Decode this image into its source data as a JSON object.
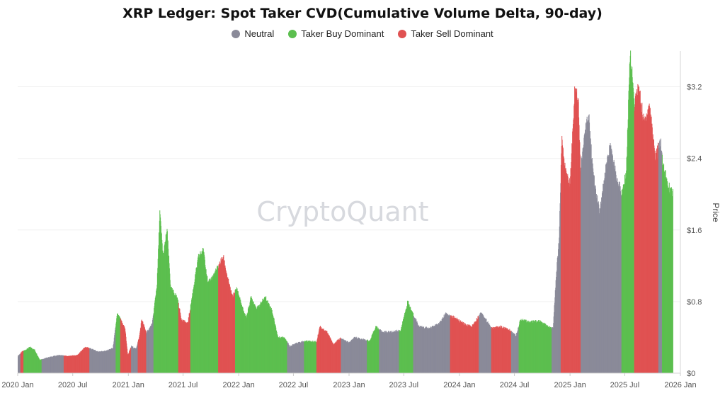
{
  "chart_data": {
    "type": "bar",
    "title": "XRP Ledger: Spot Taker CVD(Cumulative Volume Delta, 90-day)",
    "legend": [
      {
        "name": "Neutral",
        "color": "#8a8a99"
      },
      {
        "name": "Taker Buy Dominant",
        "color": "#5cbf4f"
      },
      {
        "name": "Taker Sell Dominant",
        "color": "#e05252"
      }
    ],
    "watermark": "CryptoQuant",
    "ylabel": "Price",
    "ylim": [
      0,
      3.6
    ],
    "yticks": [
      {
        "value": 0,
        "label": "$0"
      },
      {
        "value": 0.8,
        "label": "$0.8"
      },
      {
        "value": 1.6,
        "label": "$1.6"
      },
      {
        "value": 2.4,
        "label": "$2.4"
      },
      {
        "value": 3.2,
        "label": "$3.2"
      }
    ],
    "xrange": [
      "2020-01-01",
      "2026-01-01"
    ],
    "xticks": [
      {
        "date": "2020-01-01",
        "label": "2020 Jan"
      },
      {
        "date": "2020-07-01",
        "label": "2020 Jul"
      },
      {
        "date": "2021-01-01",
        "label": "2021 Jan"
      },
      {
        "date": "2021-07-01",
        "label": "2021 Jul"
      },
      {
        "date": "2022-01-01",
        "label": "2022 Jan"
      },
      {
        "date": "2022-07-01",
        "label": "2022 Jul"
      },
      {
        "date": "2023-01-01",
        "label": "2023 Jan"
      },
      {
        "date": "2023-07-01",
        "label": "2023 Jul"
      },
      {
        "date": "2024-01-01",
        "label": "2024 Jan"
      },
      {
        "date": "2024-07-01",
        "label": "2024 Jul"
      },
      {
        "date": "2025-01-01",
        "label": "2025 Jan"
      },
      {
        "date": "2025-07-01",
        "label": "2025 Jul"
      },
      {
        "date": "2026-01-01",
        "label": "2026 Jan"
      }
    ],
    "price_series": [
      [
        "2019-12-31",
        0.19
      ],
      [
        "2020-01-15",
        0.24
      ],
      [
        "2020-02-10",
        0.29
      ],
      [
        "2020-02-25",
        0.26
      ],
      [
        "2020-03-13",
        0.15
      ],
      [
        "2020-04-15",
        0.18
      ],
      [
        "2020-05-15",
        0.2
      ],
      [
        "2020-06-15",
        0.19
      ],
      [
        "2020-07-15",
        0.2
      ],
      [
        "2020-08-10",
        0.29
      ],
      [
        "2020-08-25",
        0.28
      ],
      [
        "2020-09-20",
        0.24
      ],
      [
        "2020-10-20",
        0.25
      ],
      [
        "2020-11-10",
        0.28
      ],
      [
        "2020-11-24",
        0.66
      ],
      [
        "2020-12-05",
        0.6
      ],
      [
        "2020-12-20",
        0.5
      ],
      [
        "2020-12-29",
        0.2
      ],
      [
        "2021-01-10",
        0.3
      ],
      [
        "2021-01-25",
        0.27
      ],
      [
        "2021-02-05",
        0.4
      ],
      [
        "2021-02-13",
        0.6
      ],
      [
        "2021-03-01",
        0.45
      ],
      [
        "2021-03-20",
        0.55
      ],
      [
        "2021-04-05",
        1.0
      ],
      [
        "2021-04-14",
        1.8
      ],
      [
        "2021-04-25",
        1.3
      ],
      [
        "2021-05-08",
        1.6
      ],
      [
        "2021-05-20",
        0.95
      ],
      [
        "2021-06-10",
        0.85
      ],
      [
        "2021-06-25",
        0.6
      ],
      [
        "2021-07-15",
        0.55
      ],
      [
        "2021-07-25",
        0.75
      ],
      [
        "2021-08-10",
        1.1
      ],
      [
        "2021-08-20",
        1.3
      ],
      [
        "2021-09-06",
        1.38
      ],
      [
        "2021-09-20",
        1.0
      ],
      [
        "2021-10-10",
        1.1
      ],
      [
        "2021-11-10",
        1.3
      ],
      [
        "2021-11-25",
        1.05
      ],
      [
        "2021-12-10",
        0.85
      ],
      [
        "2021-12-25",
        0.95
      ],
      [
        "2022-01-10",
        0.75
      ],
      [
        "2022-01-25",
        0.62
      ],
      [
        "2022-02-10",
        0.85
      ],
      [
        "2022-03-01",
        0.72
      ],
      [
        "2022-03-29",
        0.85
      ],
      [
        "2022-04-20",
        0.7
      ],
      [
        "2022-05-10",
        0.4
      ],
      [
        "2022-06-01",
        0.4
      ],
      [
        "2022-06-18",
        0.3
      ],
      [
        "2022-07-15",
        0.34
      ],
      [
        "2022-08-15",
        0.36
      ],
      [
        "2022-09-15",
        0.35
      ],
      [
        "2022-09-25",
        0.52
      ],
      [
        "2022-10-20",
        0.46
      ],
      [
        "2022-11-09",
        0.32
      ],
      [
        "2022-12-01",
        0.39
      ],
      [
        "2022-12-31",
        0.34
      ],
      [
        "2023-01-20",
        0.4
      ],
      [
        "2023-02-10",
        0.38
      ],
      [
        "2023-03-10",
        0.36
      ],
      [
        "2023-03-29",
        0.52
      ],
      [
        "2023-04-20",
        0.46
      ],
      [
        "2023-05-20",
        0.46
      ],
      [
        "2023-06-20",
        0.48
      ],
      [
        "2023-07-13",
        0.8
      ],
      [
        "2023-07-25",
        0.7
      ],
      [
        "2023-08-20",
        0.52
      ],
      [
        "2023-09-20",
        0.5
      ],
      [
        "2023-10-25",
        0.55
      ],
      [
        "2023-11-15",
        0.66
      ],
      [
        "2023-12-15",
        0.62
      ],
      [
        "2024-01-15",
        0.55
      ],
      [
        "2024-02-10",
        0.52
      ],
      [
        "2024-03-12",
        0.68
      ],
      [
        "2024-04-15",
        0.5
      ],
      [
        "2024-05-15",
        0.52
      ],
      [
        "2024-06-15",
        0.48
      ],
      [
        "2024-07-05",
        0.42
      ],
      [
        "2024-07-20",
        0.6
      ],
      [
        "2024-08-20",
        0.57
      ],
      [
        "2024-09-20",
        0.58
      ],
      [
        "2024-10-15",
        0.53
      ],
      [
        "2024-11-05",
        0.5
      ],
      [
        "2024-11-15",
        1.1
      ],
      [
        "2024-11-25",
        1.5
      ],
      [
        "2024-12-03",
        2.6
      ],
      [
        "2024-12-20",
        2.2
      ],
      [
        "2024-12-31",
        2.1
      ],
      [
        "2025-01-16",
        3.2
      ],
      [
        "2025-01-28",
        3.05
      ],
      [
        "2025-02-03",
        2.3
      ],
      [
        "2025-02-20",
        2.7
      ],
      [
        "2025-03-03",
        2.9
      ],
      [
        "2025-03-15",
        2.3
      ],
      [
        "2025-04-07",
        1.8
      ],
      [
        "2025-04-25",
        2.2
      ],
      [
        "2025-05-12",
        2.55
      ],
      [
        "2025-06-01",
        2.2
      ],
      [
        "2025-06-22",
        2.0
      ],
      [
        "2025-07-05",
        2.25
      ],
      [
        "2025-07-18",
        3.6
      ],
      [
        "2025-08-01",
        3.0
      ],
      [
        "2025-08-15",
        3.2
      ],
      [
        "2025-09-01",
        2.8
      ],
      [
        "2025-09-20",
        3.0
      ],
      [
        "2025-10-10",
        2.4
      ],
      [
        "2025-10-25",
        2.6
      ],
      [
        "2025-11-05",
        2.3
      ],
      [
        "2025-11-20",
        2.1
      ],
      [
        "2025-12-06",
        2.0
      ]
    ],
    "regime_series": [
      [
        "2020-01-01",
        "neutral"
      ],
      [
        "2020-01-10",
        "sell"
      ],
      [
        "2020-01-20",
        "buy"
      ],
      [
        "2020-03-20",
        "neutral"
      ],
      [
        "2020-06-01",
        "sell"
      ],
      [
        "2020-08-25",
        "neutral"
      ],
      [
        "2020-11-20",
        "buy"
      ],
      [
        "2020-12-05",
        "sell"
      ],
      [
        "2021-01-10",
        "neutral"
      ],
      [
        "2021-02-01",
        "sell"
      ],
      [
        "2021-03-01",
        "neutral"
      ],
      [
        "2021-03-25",
        "buy"
      ],
      [
        "2021-06-15",
        "sell"
      ],
      [
        "2021-07-25",
        "buy"
      ],
      [
        "2021-10-25",
        "sell"
      ],
      [
        "2021-12-20",
        "buy"
      ],
      [
        "2022-06-10",
        "neutral"
      ],
      [
        "2022-08-05",
        "buy"
      ],
      [
        "2022-09-15",
        "sell"
      ],
      [
        "2022-12-05",
        "neutral"
      ],
      [
        "2023-03-01",
        "buy"
      ],
      [
        "2023-04-10",
        "neutral"
      ],
      [
        "2023-06-15",
        "buy"
      ],
      [
        "2023-08-01",
        "neutral"
      ],
      [
        "2023-12-01",
        "sell"
      ],
      [
        "2024-03-05",
        "neutral"
      ],
      [
        "2024-04-15",
        "sell"
      ],
      [
        "2024-06-20",
        "neutral"
      ],
      [
        "2024-07-15",
        "buy"
      ],
      [
        "2024-11-01",
        "neutral"
      ],
      [
        "2024-12-01",
        "sell"
      ],
      [
        "2025-02-05",
        "neutral"
      ],
      [
        "2025-06-20",
        "buy"
      ],
      [
        "2025-08-01",
        "sell"
      ],
      [
        "2025-10-20",
        "neutral"
      ],
      [
        "2025-11-01",
        "buy"
      ]
    ],
    "end_date": "2025-12-06"
  }
}
